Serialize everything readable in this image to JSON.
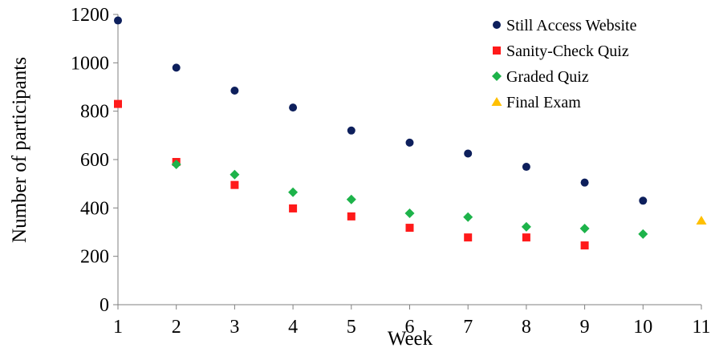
{
  "chart_data": {
    "type": "scatter",
    "xlabel": "Week",
    "ylabel": "Number of participants",
    "x_ticks": [
      "1",
      "2",
      "3",
      "4",
      "5",
      "6",
      "7",
      "8",
      "9",
      "10",
      "11"
    ],
    "y_ticks": [
      "0",
      "200",
      "400",
      "600",
      "800",
      "1000",
      "1200"
    ],
    "xlim": [
      1,
      11
    ],
    "ylim": [
      0,
      1200
    ],
    "grid": false,
    "legend_position": "top-right",
    "series": [
      {
        "name": "Still Access Website",
        "marker": "circle",
        "color": "#0d1f5c",
        "points": [
          [
            1,
            1175
          ],
          [
            2,
            980
          ],
          [
            3,
            885
          ],
          [
            4,
            815
          ],
          [
            5,
            720
          ],
          [
            6,
            670
          ],
          [
            7,
            625
          ],
          [
            8,
            570
          ],
          [
            9,
            505
          ],
          [
            10,
            430
          ]
        ]
      },
      {
        "name": "Sanity-Check Quiz",
        "marker": "square",
        "color": "#ff1a1a",
        "points": [
          [
            1,
            830
          ],
          [
            2,
            590
          ],
          [
            3,
            495
          ],
          [
            4,
            398
          ],
          [
            5,
            365
          ],
          [
            6,
            318
          ],
          [
            7,
            278
          ],
          [
            8,
            278
          ],
          [
            9,
            245
          ]
        ]
      },
      {
        "name": "Graded Quiz",
        "marker": "diamond",
        "color": "#1db34a",
        "points": [
          [
            2,
            580
          ],
          [
            3,
            538
          ],
          [
            4,
            465
          ],
          [
            5,
            435
          ],
          [
            6,
            378
          ],
          [
            7,
            362
          ],
          [
            8,
            322
          ],
          [
            9,
            315
          ],
          [
            10,
            292
          ]
        ]
      },
      {
        "name": "Final Exam",
        "marker": "triangle",
        "color": "#ffc000",
        "points": [
          [
            11,
            348
          ]
        ]
      }
    ]
  }
}
